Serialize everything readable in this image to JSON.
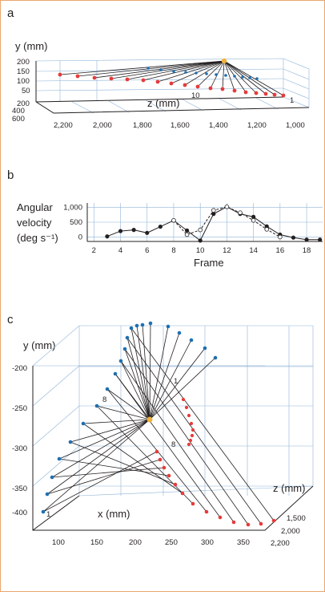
{
  "figure": {
    "border_color": "#e9a66b",
    "panels": [
      {
        "letter": "a",
        "y_axis_label": "y (mm)",
        "y_ticks": [
          "200",
          "150",
          "100",
          "50"
        ],
        "x_axis_label": "z (mm)",
        "x_ticks": [
          "2,200",
          "2,000",
          "1,800",
          "1,600",
          "1,400",
          "1,200",
          "1,000"
        ],
        "depth_ticks": [
          "200",
          "400",
          "600"
        ],
        "annotations": [
          "10",
          "1"
        ]
      },
      {
        "letter": "b",
        "y_axis_label_lines": [
          "Angular",
          "velocity",
          "(deg s⁻¹)"
        ],
        "y_ticks": [
          "1,000",
          "500",
          "0"
        ],
        "x_axis_label": "Frame",
        "x_ticks": [
          "2",
          "4",
          "6",
          "8",
          "10",
          "12",
          "14",
          "16",
          "18"
        ]
      },
      {
        "letter": "c",
        "y_axis_label": "y (mm)",
        "y_ticks": [
          "-200",
          "-250",
          "-300",
          "-350",
          "-400"
        ],
        "x_axis_label": "x (mm)",
        "x_ticks": [
          "100",
          "150",
          "200",
          "250",
          "300",
          "350"
        ],
        "z_axis_label": "z (mm)",
        "z_ticks": [
          "1,500",
          "2,000",
          "2,200"
        ],
        "annotations": [
          "1",
          "8",
          "1",
          "8"
        ]
      }
    ]
  },
  "colors": {
    "red_marker": "#e63b3b",
    "blue_marker": "#1f6fb0",
    "grid": "#8fb4d8",
    "frame": "#e9a66b"
  },
  "chart_data": [
    {
      "type": "line",
      "title": "",
      "xlabel": "Frame",
      "ylabel": "Angular velocity (deg s⁻¹)",
      "xlim": [
        1.5,
        19.2
      ],
      "ylim": [
        -150,
        1150
      ],
      "xticks": [
        2,
        4,
        6,
        8,
        10,
        12,
        14,
        16,
        18
      ],
      "yticks": [
        0,
        500,
        1000
      ],
      "grid": true,
      "series": [
        {
          "style": "solid-filled-markers",
          "x": [
            3,
            4,
            5,
            6,
            7,
            8,
            9,
            10,
            11,
            12,
            13,
            14,
            15,
            16,
            17,
            18,
            19
          ],
          "values": [
            20,
            200,
            240,
            140,
            350,
            560,
            220,
            -120,
            780,
            1020,
            780,
            680,
            360,
            80,
            -20,
            -90,
            -90
          ]
        },
        {
          "style": "dashed-open-markers",
          "x": [
            8,
            9,
            10,
            11,
            12,
            13,
            14,
            15,
            16
          ],
          "values": [
            560,
            80,
            240,
            900,
            1020,
            820,
            560,
            260,
            0
          ]
        }
      ]
    }
  ]
}
